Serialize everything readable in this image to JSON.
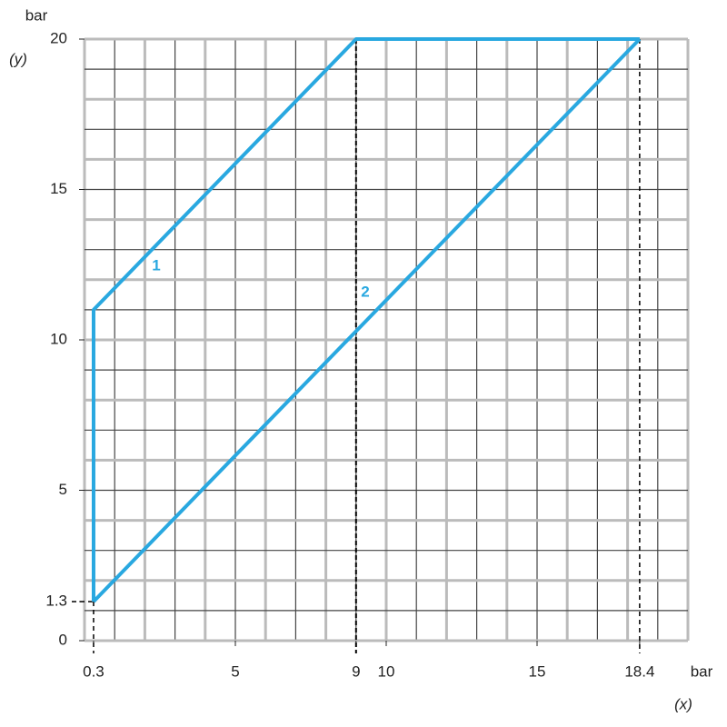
{
  "chart_data": {
    "type": "line",
    "y_unit": "bar",
    "y_label": "(y)",
    "x_unit": "bar",
    "x_label": "(x)",
    "xlim": [
      0,
      20
    ],
    "ylim": [
      0,
      20
    ],
    "xticks": [
      0.3,
      5,
      9,
      10,
      15,
      18.4
    ],
    "yticks": [
      0,
      1.3,
      5,
      10,
      15,
      20
    ],
    "xgrid": [
      0,
      1,
      2,
      3,
      4,
      5,
      6,
      7,
      8,
      9,
      10,
      11,
      12,
      13,
      14,
      15,
      16,
      17,
      18,
      19,
      20
    ],
    "ygrid": [
      0,
      1,
      2,
      3,
      4,
      5,
      6,
      7,
      8,
      9,
      10,
      11,
      12,
      13,
      14,
      15,
      16,
      17,
      18,
      19,
      20
    ],
    "series": [
      {
        "name": "1",
        "color": "#29a8e0",
        "x": [
          0.3,
          0.3,
          9,
          18.4
        ],
        "values": [
          1.3,
          11,
          20,
          20
        ]
      },
      {
        "name": "2",
        "color": "#29a8e0",
        "x": [
          0.3,
          18.4
        ],
        "values": [
          1.3,
          20
        ]
      }
    ]
  }
}
